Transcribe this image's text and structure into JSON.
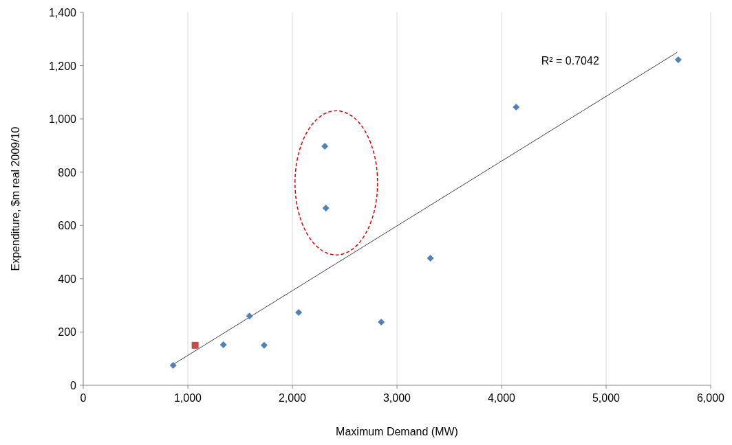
{
  "chart_data": {
    "type": "scatter",
    "xlabel": "Maximum Demand (MW)",
    "ylabel": "Expenditure, $m real 2009/10",
    "xlim": [
      0,
      6000
    ],
    "xticks": [
      {
        "value": 0,
        "label": "0"
      },
      {
        "value": 1000,
        "label": "1,000"
      },
      {
        "value": 2000,
        "label": "2,000"
      },
      {
        "value": 3000,
        "label": "3,000"
      },
      {
        "value": 4000,
        "label": "4,000"
      },
      {
        "value": 5000,
        "label": "5,000"
      },
      {
        "value": 6000,
        "label": "6,000"
      }
    ],
    "ylim": [
      0,
      1400
    ],
    "yticks": [
      {
        "value": 0,
        "label": "0"
      },
      {
        "value": 200,
        "label": "200"
      },
      {
        "value": 400,
        "label": "400"
      },
      {
        "value": 600,
        "label": "600"
      },
      {
        "value": 800,
        "label": "800"
      },
      {
        "value": 1000,
        "label": "1,000"
      },
      {
        "value": 1200,
        "label": "1,200"
      },
      {
        "value": 1400,
        "label": "1,400"
      }
    ],
    "grid": "x",
    "series": [
      {
        "color": "#4f81bd",
        "marker": "diamond",
        "x": [
          860,
          1340,
          1590,
          1730,
          2060,
          2310,
          2320,
          2850,
          3320,
          4140,
          5690
        ],
        "values": [
          75,
          152,
          260,
          150,
          273,
          897,
          665,
          237,
          477,
          1044,
          1222
        ]
      },
      {
        "color": "#c0504d",
        "marker": "square",
        "x": [
          1070
        ],
        "values": [
          150
        ]
      },
      {
        "type": "line",
        "color": "#404040",
        "line_style": "solid",
        "x": [
          860,
          5680
        ],
        "values": [
          78,
          1250
        ]
      }
    ],
    "annotations": [
      "R² = 0.7042"
    ]
  }
}
